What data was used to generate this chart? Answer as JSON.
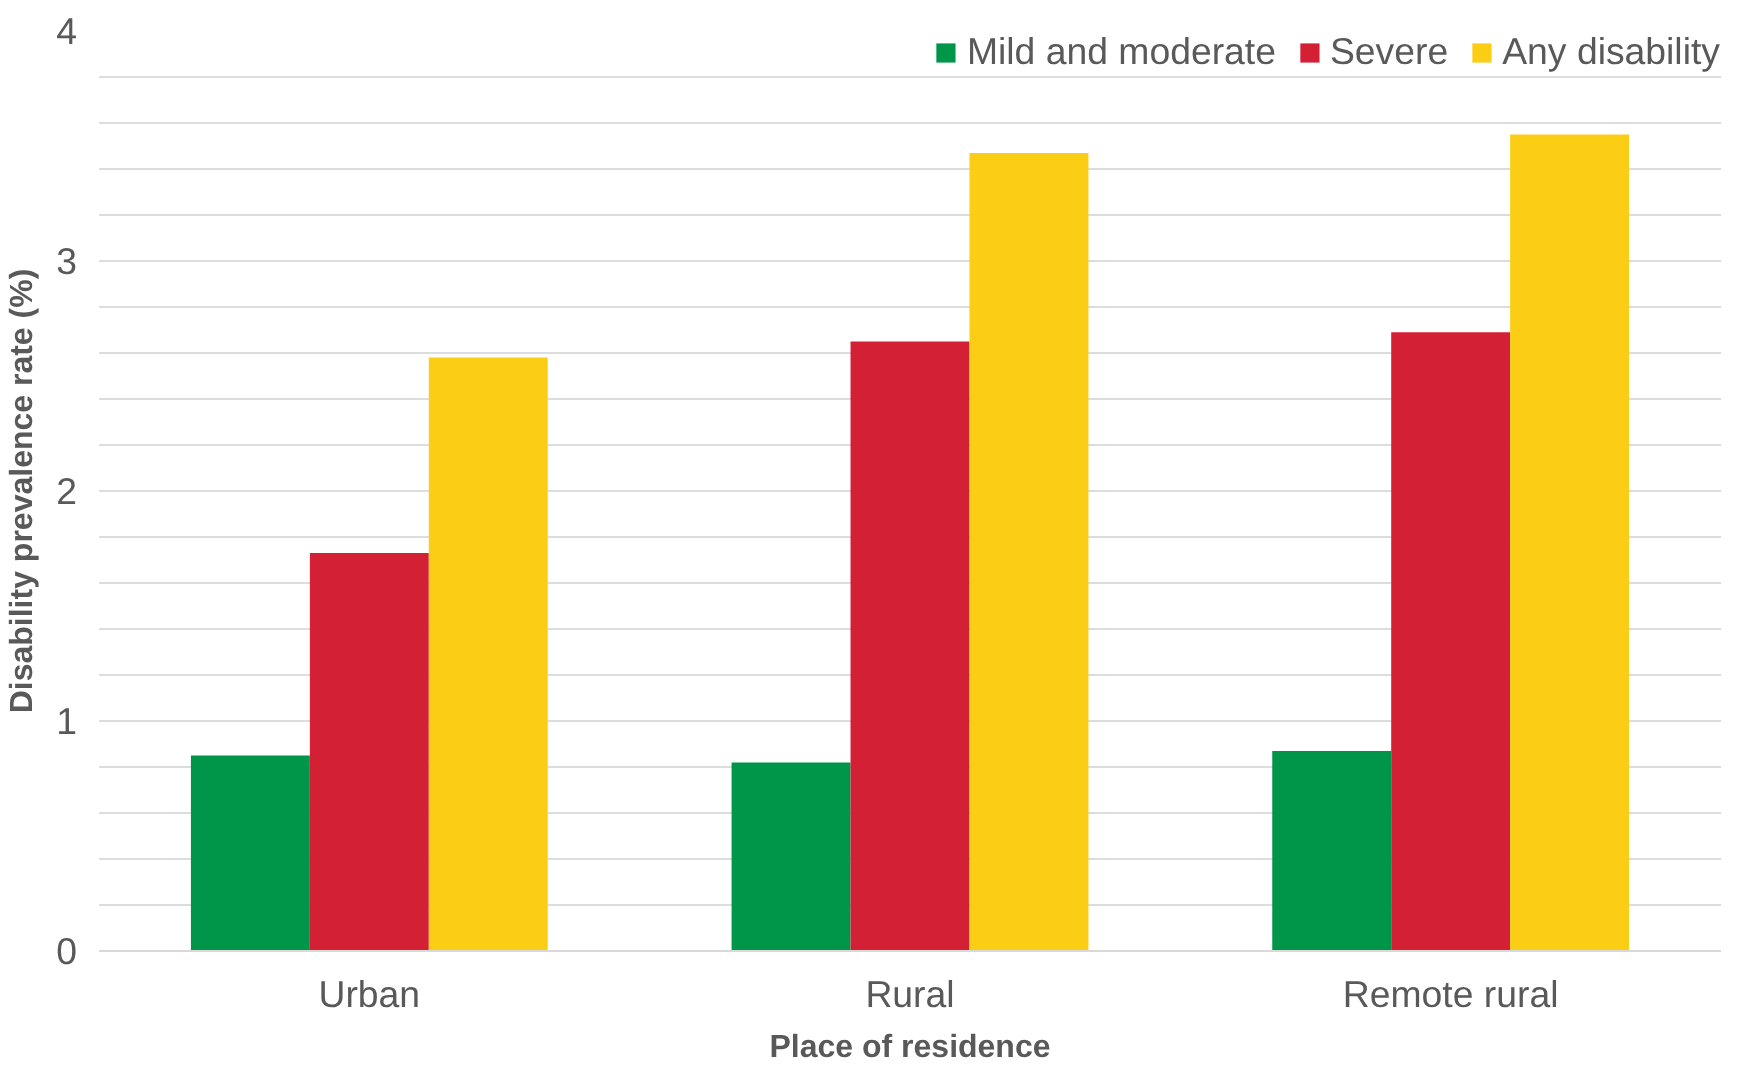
{
  "chart_data": {
    "type": "bar",
    "xlabel": "Place of residence",
    "ylabel": "Disability prevalence rate (%)",
    "categories": [
      "Urban",
      "Rural",
      "Remote rural"
    ],
    "series": [
      {
        "name": "Mild and moderate",
        "color": "#00964a",
        "values": [
          0.85,
          0.82,
          0.87
        ]
      },
      {
        "name": "Severe",
        "color": "#d42034",
        "values": [
          1.73,
          2.65,
          2.69
        ]
      },
      {
        "name": "Any disability",
        "color": "#fbcd14",
        "values": [
          2.58,
          3.47,
          3.55
        ]
      }
    ],
    "ylim": [
      0,
      4
    ],
    "yticks": [
      0,
      {
        "value": 0.2,
        "label": null
      },
      {
        "value": 0.4,
        "label": null
      },
      {
        "value": 0.6,
        "label": null
      },
      {
        "value": 0.8,
        "label": null
      },
      1,
      {
        "value": 1.2,
        "label": null
      },
      {
        "value": 1.4,
        "label": null
      },
      {
        "value": 1.6,
        "label": null
      },
      {
        "value": 1.8,
        "label": null
      },
      2,
      {
        "value": 2.2,
        "label": null
      },
      {
        "value": 2.4,
        "label": null
      },
      {
        "value": 2.6,
        "label": null
      },
      {
        "value": 2.8,
        "label": null
      },
      3,
      {
        "value": 3.2,
        "label": null
      },
      {
        "value": 3.4,
        "label": null
      },
      {
        "value": 3.6,
        "label": null
      },
      {
        "value": 3.8,
        "label": null
      },
      4
    ],
    "grid": "y",
    "legend": "top right"
  }
}
